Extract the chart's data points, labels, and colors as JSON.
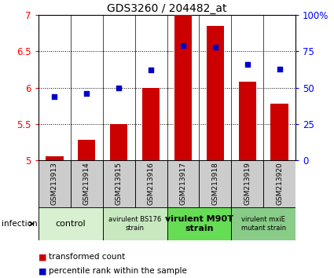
{
  "title": "GDS3260 / 204482_at",
  "samples": [
    "GSM213913",
    "GSM213914",
    "GSM213915",
    "GSM213916",
    "GSM213917",
    "GSM213918",
    "GSM213919",
    "GSM213920"
  ],
  "transformed_count": [
    5.05,
    5.28,
    5.5,
    6.0,
    7.0,
    6.85,
    6.08,
    5.78
  ],
  "percentile_rank": [
    44,
    46,
    50,
    62,
    79,
    78,
    66,
    63
  ],
  "ylim_left": [
    5.0,
    7.0
  ],
  "ylim_right": [
    0,
    100
  ],
  "yticks_left": [
    5.0,
    5.5,
    6.0,
    6.5,
    7.0
  ],
  "ytick_labels_left": [
    "5",
    "5.5",
    "6",
    "6.5",
    "7"
  ],
  "yticks_right": [
    0,
    25,
    50,
    75,
    100
  ],
  "ytick_labels_right": [
    "0",
    "25",
    "50",
    "75",
    "100%"
  ],
  "bar_color": "#cc0000",
  "dot_color": "#0000cc",
  "bar_bottom": 5.0,
  "bar_width": 0.55,
  "groups": [
    {
      "label": "control",
      "span": [
        0,
        2
      ],
      "color": "#d8f0d0",
      "fontsize": 8,
      "bold": false
    },
    {
      "label": "avirulent BS176\nstrain",
      "span": [
        2,
        4
      ],
      "color": "#c8e8c0",
      "fontsize": 6,
      "bold": false
    },
    {
      "label": "virulent M90T\nstrain",
      "span": [
        4,
        6
      ],
      "color": "#66dd55",
      "fontsize": 8,
      "bold": true
    },
    {
      "label": "virulent mxiE\nmutant strain",
      "span": [
        6,
        8
      ],
      "color": "#88cc88",
      "fontsize": 6,
      "bold": false
    }
  ],
  "sample_box_color": "#cccccc",
  "infection_label": "infection",
  "legend_items": [
    {
      "color": "#cc0000",
      "label": "transformed count"
    },
    {
      "color": "#0000cc",
      "label": "percentile rank within the sample"
    }
  ]
}
